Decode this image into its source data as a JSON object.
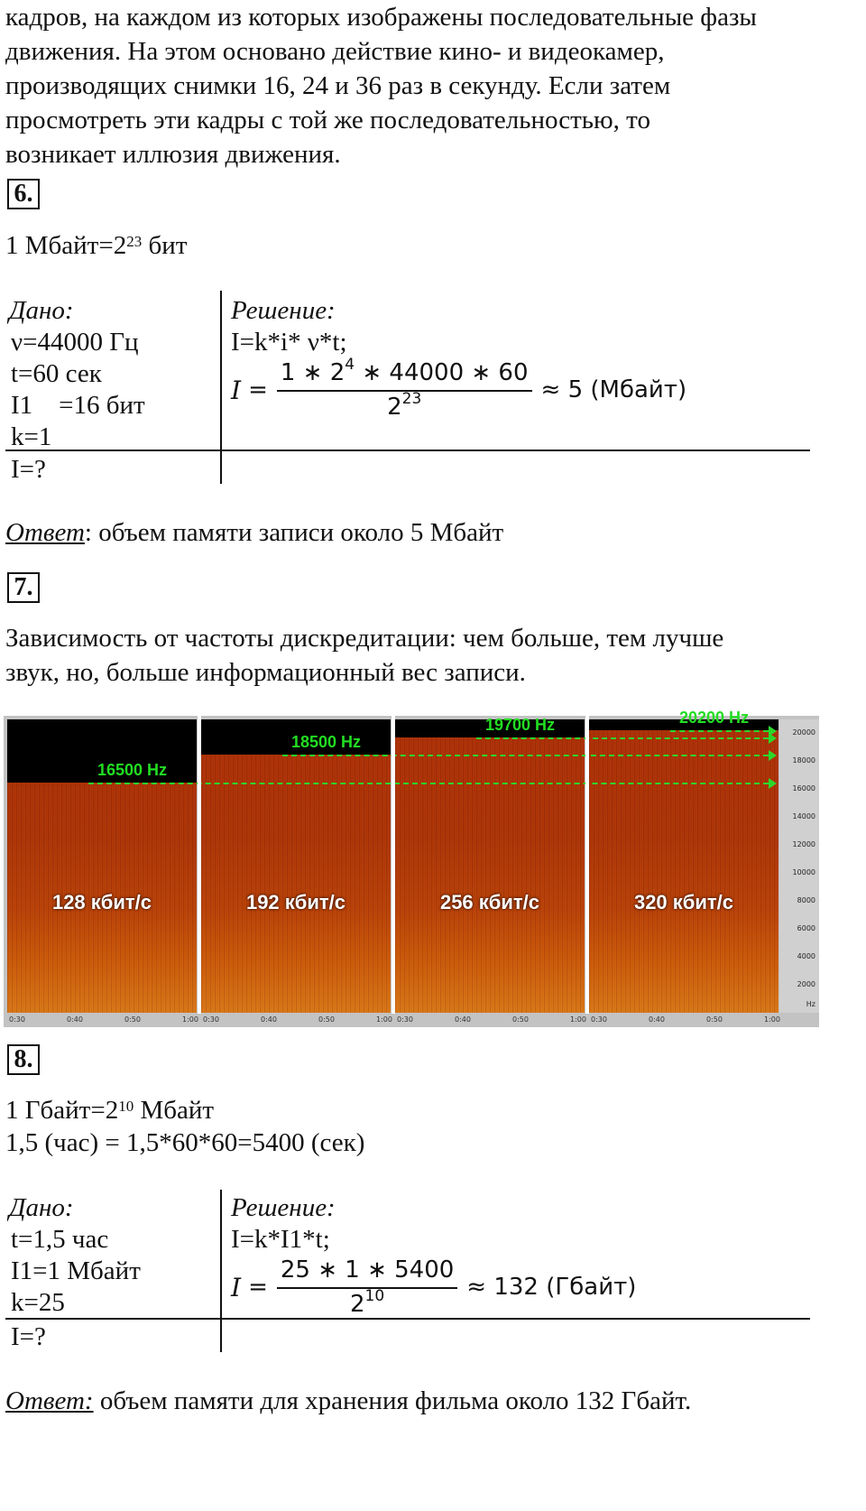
{
  "intro": {
    "lines": [
      "кадров, на каждом из которых изображены последовательные фазы",
      "движения. На этом основано действие кино- и видеокамер,",
      "производящих снимки 16, 24 и 36 раз в секунду. Если затем",
      "просмотреть эти кадры с той же последовательностью, то",
      "возникает иллюзия движения."
    ]
  },
  "task6": {
    "number": "6.",
    "fact_prefix": "1 Мбайт=2",
    "fact_exp": "23",
    "fact_suffix": " бит",
    "given_label": "Дано:",
    "given": [
      "ν=44000 Гц",
      "t=60 сек",
      "I1    =16 бит",
      "k=1"
    ],
    "find": "I=?",
    "solution_label": "Решение:",
    "formula_line": "I=k*i* ν*t;",
    "math_var": "I",
    "math_eq": "=",
    "num_a": "1 ∗ 2",
    "num_exp": "4",
    "num_b": " ∗ 44000 ∗ 60",
    "den_base": "2",
    "den_exp": "23",
    "result": "≈ 5 (Мбайт)",
    "answer_label": "Ответ",
    "answer_text": ": объем памяти записи около 5 Мбайт"
  },
  "task7": {
    "number": "7.",
    "lines": [
      "Зависимость от частоты дискредитации: чем больше, тем лучше",
      "звук, но, больше информационный вес записи."
    ],
    "spectrogram": {
      "panels": [
        {
          "bitrate": "128 кбит/с",
          "cutoff_hz": 16500,
          "cutoff_label": "16500 Hz"
        },
        {
          "bitrate": "192 кбит/с",
          "cutoff_hz": 18500,
          "cutoff_label": "18500 Hz"
        },
        {
          "bitrate": "256 кбит/с",
          "cutoff_hz": 19700,
          "cutoff_label": "19700 Hz"
        },
        {
          "bitrate": "320 кбит/с",
          "cutoff_hz": 20200,
          "cutoff_label": "20200 Hz"
        }
      ],
      "time_ticks": [
        "0:30",
        "0:40",
        "0:50",
        "1:00"
      ],
      "y_ticks": [
        "20000",
        "18000",
        "16000",
        "14000",
        "12000",
        "10000",
        "8000",
        "6000",
        "4000",
        "2000",
        "Hz"
      ],
      "y_max_hz": 21000,
      "label_color": "#22dd22"
    }
  },
  "task8": {
    "number": "8.",
    "fact1_prefix": "1 Гбайт=2",
    "fact1_exp": "10",
    "fact1_suffix": " Мбайт",
    "fact2": "1,5 (час) = 1,5*60*60=5400 (сек)",
    "given_label": "Дано:",
    "given": [
      "t=1,5 час",
      "I1=1 Мбайт",
      "k=25"
    ],
    "find": "I=?",
    "solution_label": "Решение:",
    "formula_line": "I=k*I1*t;",
    "math_var": "I",
    "math_eq": "=",
    "num": "25 ∗ 1 ∗ 5400",
    "den_base": "2",
    "den_exp": "10",
    "result": "≈ 132 (Гбайт)",
    "answer_label": "Ответ:",
    "answer_text": " объем памяти для хранения фильма около 132 Гбайт."
  }
}
